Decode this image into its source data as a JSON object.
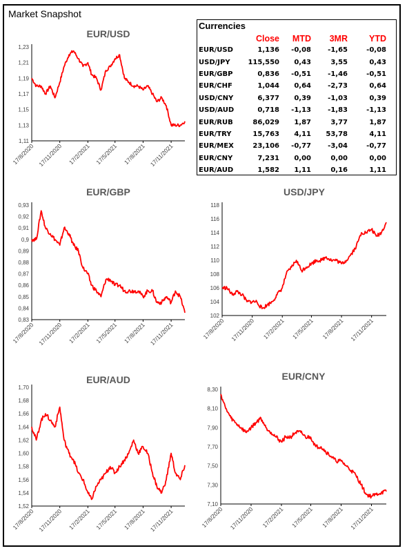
{
  "page_title": "Market Snapshot",
  "series_color": "#ff0000",
  "currencies": {
    "title": "Currencies",
    "headers": [
      "",
      "Close",
      "MTD",
      "3MR",
      "YTD"
    ],
    "rows": [
      [
        "EUR/USD",
        "1,136",
        "-0,08",
        "-1,65",
        "-0,08"
      ],
      [
        "USD/JPY",
        "115,550",
        "0,43",
        "3,55",
        "0,43"
      ],
      [
        "EUR/GBP",
        "0,836",
        "-0,51",
        "-1,46",
        "-0,51"
      ],
      [
        "EUR/CHF",
        "1,044",
        "0,64",
        "-2,73",
        "0,64"
      ],
      [
        "USD/CNY",
        "6,377",
        "0,39",
        "-1,03",
        "0,39"
      ],
      [
        "USD/AUD",
        "0,718",
        "-1,13",
        "-1,83",
        "-1,13"
      ],
      [
        "EUR/RUB",
        "86,029",
        "1,87",
        "3,77",
        "1,87"
      ],
      [
        "EUR/TRY",
        "15,763",
        "4,11",
        "53,78",
        "4,11"
      ],
      [
        "EUR/MEX",
        "23,106",
        "-0,77",
        "-3,04",
        "-0,77"
      ],
      [
        "EUR/CNY",
        "7,231",
        "0,00",
        "0,00",
        "0,00"
      ],
      [
        "EUR/AUD",
        "1,582",
        "1,11",
        "0,16",
        "1,11"
      ]
    ]
  },
  "chart_data": [
    {
      "type": "line",
      "title": "EUR/USD",
      "x_ticks": [
        "17/8/2020",
        "17/11/2020",
        "17/2/2021",
        "17/5/2021",
        "17/8/2021",
        "17/11/2021"
      ],
      "y_ticks": [
        "1,23",
        "1,21",
        "1,19",
        "1,17",
        "1,15",
        "1,13",
        "1,11"
      ],
      "ylim": [
        1.11,
        1.23
      ],
      "series": [
        {
          "x": [
            "17/8/2020",
            "1/9/2020",
            "17/9/2020",
            "1/10/2020",
            "17/10/2020",
            "1/11/2020",
            "17/11/2020",
            "1/12/2020",
            "17/12/2020",
            "1/1/2021",
            "17/1/2021",
            "1/2/2021",
            "17/2/2021",
            "1/3/2021",
            "17/3/2021",
            "1/4/2021",
            "17/4/2021",
            "1/5/2021",
            "17/5/2021",
            "1/6/2021",
            "17/6/2021",
            "1/7/2021",
            "17/7/2021",
            "1/8/2021",
            "17/8/2021",
            "1/9/2021",
            "17/9/2021",
            "1/10/2021",
            "17/10/2021",
            "1/11/2021",
            "17/11/2021",
            "1/12/2021",
            "17/12/2021",
            "1/1/2022"
          ],
          "values": [
            1.19,
            1.18,
            1.18,
            1.17,
            1.18,
            1.165,
            1.185,
            1.205,
            1.22,
            1.225,
            1.215,
            1.205,
            1.21,
            1.195,
            1.19,
            1.175,
            1.2,
            1.205,
            1.215,
            1.22,
            1.19,
            1.185,
            1.18,
            1.18,
            1.175,
            1.18,
            1.17,
            1.16,
            1.165,
            1.155,
            1.13,
            1.13,
            1.13,
            1.135
          ]
        }
      ]
    },
    {
      "type": "line",
      "title": "EUR/GBP",
      "x_ticks": [
        "17/8/2020",
        "17/11/2020",
        "17/2/2021",
        "17/5/2021",
        "17/8/2021",
        "17/11/2021"
      ],
      "y_ticks": [
        "0,93",
        "0,92",
        "0,91",
        "0,9",
        "0,89",
        "0,88",
        "0,87",
        "0,86",
        "0,85",
        "0,84",
        "0,83"
      ],
      "ylim": [
        0.83,
        0.93
      ],
      "series": [
        {
          "x": [
            "17/8/2020",
            "1/9/2020",
            "17/9/2020",
            "1/10/2020",
            "17/10/2020",
            "1/11/2020",
            "17/11/2020",
            "1/12/2020",
            "17/12/2020",
            "1/1/2021",
            "17/1/2021",
            "1/2/2021",
            "17/2/2021",
            "1/3/2021",
            "17/3/2021",
            "1/4/2021",
            "17/4/2021",
            "1/5/2021",
            "17/5/2021",
            "1/6/2021",
            "17/6/2021",
            "1/7/2021",
            "17/7/2021",
            "1/8/2021",
            "17/8/2021",
            "1/9/2021",
            "17/9/2021",
            "1/10/2021",
            "17/10/2021",
            "1/11/2021",
            "17/11/2021",
            "1/12/2021",
            "17/12/2021",
            "1/1/2022"
          ],
          "values": [
            0.9,
            0.9,
            0.925,
            0.91,
            0.905,
            0.9,
            0.895,
            0.91,
            0.905,
            0.895,
            0.89,
            0.875,
            0.87,
            0.86,
            0.855,
            0.85,
            0.865,
            0.865,
            0.86,
            0.86,
            0.855,
            0.855,
            0.855,
            0.855,
            0.85,
            0.855,
            0.855,
            0.845,
            0.845,
            0.85,
            0.845,
            0.855,
            0.85,
            0.836
          ]
        }
      ]
    },
    {
      "type": "line",
      "title": "USD/JPY",
      "x_ticks": [
        "17/8/2020",
        "17/11/2020",
        "17/2/2021",
        "17/5/2021",
        "17/8/2021",
        "17/11/2021"
      ],
      "y_ticks": [
        "118",
        "116",
        "114",
        "112",
        "110",
        "108",
        "106",
        "104",
        "102"
      ],
      "ylim": [
        102,
        118
      ],
      "series": [
        {
          "x": [
            "17/8/2020",
            "1/9/2020",
            "17/9/2020",
            "1/10/2020",
            "17/10/2020",
            "1/11/2020",
            "17/11/2020",
            "1/12/2020",
            "17/12/2020",
            "1/1/2021",
            "17/1/2021",
            "1/2/2021",
            "17/2/2021",
            "1/3/2021",
            "17/3/2021",
            "1/4/2021",
            "17/4/2021",
            "1/5/2021",
            "17/5/2021",
            "1/6/2021",
            "17/6/2021",
            "1/7/2021",
            "17/7/2021",
            "1/8/2021",
            "17/8/2021",
            "1/9/2021",
            "17/9/2021",
            "1/10/2021",
            "17/10/2021",
            "1/11/2021",
            "17/11/2021",
            "1/12/2021",
            "17/12/2021",
            "1/1/2022"
          ],
          "values": [
            106,
            106,
            105,
            105.5,
            105,
            104,
            104,
            104,
            103,
            103.5,
            104,
            105,
            106,
            108,
            109,
            110,
            108.5,
            109,
            109.5,
            110,
            110,
            110.5,
            110,
            110,
            109.5,
            110,
            111,
            112,
            114,
            114,
            114.5,
            113.5,
            114,
            115.5
          ]
        }
      ]
    },
    {
      "type": "line",
      "title": "EUR/AUD",
      "x_ticks": [
        "17/8/2020",
        "17/11/2020",
        "17/2/2021",
        "17/5/2021",
        "17/8/2021",
        "17/11/2021"
      ],
      "y_ticks": [
        "1,70",
        "1,68",
        "1,66",
        "1,64",
        "1,62",
        "1,60",
        "1,58",
        "1,56",
        "1,54",
        "1,52"
      ],
      "ylim": [
        1.52,
        1.7
      ],
      "series": [
        {
          "x": [
            "17/8/2020",
            "1/9/2020",
            "17/9/2020",
            "1/10/2020",
            "17/10/2020",
            "1/11/2020",
            "17/11/2020",
            "1/12/2020",
            "17/12/2020",
            "1/1/2021",
            "17/1/2021",
            "1/2/2021",
            "17/2/2021",
            "1/3/2021",
            "17/3/2021",
            "1/4/2021",
            "17/4/2021",
            "1/5/2021",
            "17/5/2021",
            "1/6/2021",
            "17/6/2021",
            "1/7/2021",
            "17/7/2021",
            "1/8/2021",
            "17/8/2021",
            "1/9/2021",
            "17/9/2021",
            "1/10/2021",
            "17/10/2021",
            "1/11/2021",
            "17/11/2021",
            "1/12/2021",
            "17/12/2021",
            "1/1/2022"
          ],
          "values": [
            1.64,
            1.62,
            1.65,
            1.66,
            1.65,
            1.64,
            1.67,
            1.62,
            1.6,
            1.59,
            1.57,
            1.56,
            1.54,
            1.53,
            1.55,
            1.56,
            1.57,
            1.58,
            1.57,
            1.58,
            1.59,
            1.6,
            1.62,
            1.6,
            1.61,
            1.6,
            1.57,
            1.55,
            1.54,
            1.56,
            1.6,
            1.57,
            1.56,
            1.582
          ]
        }
      ]
    },
    {
      "type": "line",
      "title": "EUR/CNY",
      "x_ticks": [
        "17/8/2020",
        "17/11/2020",
        "17/2/2021",
        "17/5/2021",
        "17/8/2021",
        "17/11/2021"
      ],
      "y_ticks": [
        "8,30",
        "8,10",
        "7,90",
        "7,70",
        "7,50",
        "7,30",
        "7,10"
      ],
      "ylim": [
        7.1,
        8.3
      ],
      "series": [
        {
          "x": [
            "17/8/2020",
            "1/9/2020",
            "17/9/2020",
            "1/10/2020",
            "17/10/2020",
            "1/11/2020",
            "17/11/2020",
            "1/12/2020",
            "17/12/2020",
            "1/1/2021",
            "17/1/2021",
            "1/2/2021",
            "17/2/2021",
            "1/3/2021",
            "17/3/2021",
            "1/4/2021",
            "17/4/2021",
            "1/5/2021",
            "17/5/2021",
            "1/6/2021",
            "17/6/2021",
            "1/7/2021",
            "17/7/2021",
            "1/8/2021",
            "17/8/2021",
            "1/9/2021",
            "17/9/2021",
            "1/10/2021",
            "17/10/2021",
            "1/11/2021",
            "17/11/2021",
            "1/12/2021",
            "17/12/2021",
            "1/1/2022"
          ],
          "values": [
            8.25,
            8.1,
            8.0,
            7.95,
            7.9,
            7.85,
            7.9,
            7.95,
            8.0,
            7.9,
            7.85,
            7.8,
            7.75,
            7.8,
            7.8,
            7.85,
            7.85,
            7.8,
            7.8,
            7.7,
            7.7,
            7.65,
            7.6,
            7.55,
            7.55,
            7.5,
            7.45,
            7.4,
            7.3,
            7.2,
            7.18,
            7.2,
            7.22,
            7.231
          ]
        }
      ]
    }
  ]
}
